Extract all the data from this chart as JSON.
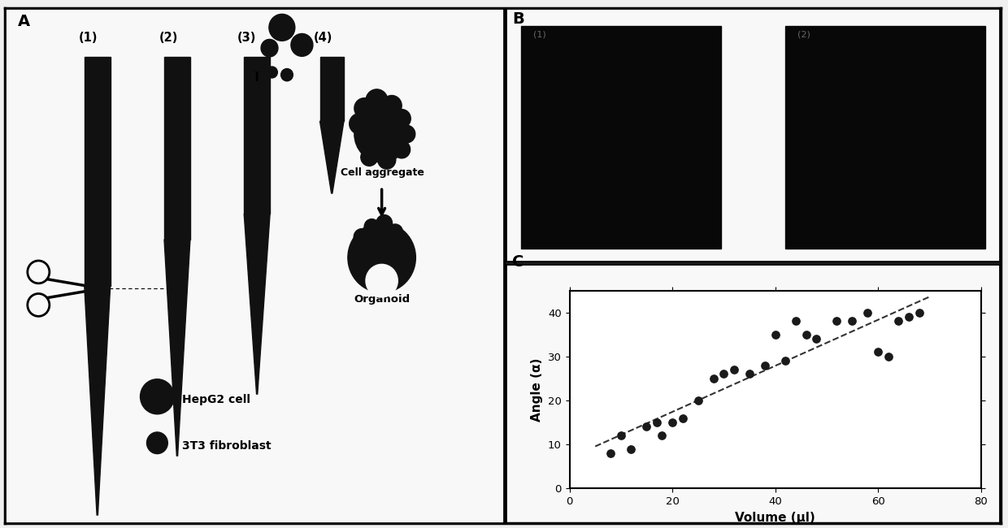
{
  "bg_color": "#f0f0f0",
  "panel_A_label": "A",
  "panel_B_label": "B",
  "panel_C_label": "C",
  "scatter_xlabel": "Volume (μl)",
  "scatter_ylabel": "Angle (α)",
  "scatter_xlim": [
    0,
    80
  ],
  "scatter_ylim": [
    0,
    45
  ],
  "scatter_xticks": [
    0,
    20,
    40,
    60,
    80
  ],
  "scatter_yticks": [
    0,
    10,
    20,
    30,
    40
  ],
  "scatter_x": [
    8,
    10,
    12,
    15,
    17,
    18,
    20,
    22,
    25,
    28,
    30,
    32,
    35,
    38,
    40,
    42,
    44,
    46,
    48,
    52,
    55,
    58,
    60,
    62,
    64,
    66,
    68
  ],
  "scatter_y": [
    8,
    12,
    9,
    14,
    15,
    12,
    15,
    16,
    20,
    25,
    26,
    27,
    26,
    28,
    35,
    29,
    38,
    35,
    34,
    38,
    38,
    40,
    31,
    30,
    38,
    39,
    40
  ],
  "dot_color": "#1a1a1a",
  "dot_size": 45,
  "trendline_color": "#333333",
  "pipette_labels": [
    "(1)",
    "(2)",
    "(3)",
    "(4)"
  ],
  "cell_aggregate_label": "Cell aggregate",
  "organoid_label": "Organoid",
  "hepg2_label": "HepG2 cell",
  "fibroblast_label": "3T3 fibroblast",
  "img1_label": "(1)",
  "img2_label": "(2)",
  "panel_facecolor": "#f8f8f8",
  "dark_color": "#111111"
}
